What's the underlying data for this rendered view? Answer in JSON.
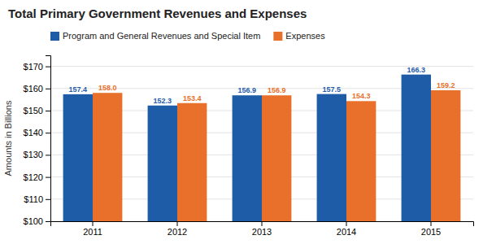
{
  "chart_data": {
    "type": "bar",
    "title": "Total Primary Government Revenues and Expenses",
    "y_label": "Amounts in Billions",
    "categories": [
      "2011",
      "2012",
      "2013",
      "2014",
      "2015"
    ],
    "series": [
      {
        "name": "Program and General Revenues and Special Item",
        "color": "#1F5CA8",
        "values": [
          157.4,
          152.3,
          156.9,
          157.5,
          166.3
        ],
        "value_labels": [
          "157.4",
          "152.3",
          "156.9",
          "157.5",
          "166.3"
        ]
      },
      {
        "name": "Expenses",
        "color": "#E8702A",
        "values": [
          158.0,
          153.4,
          156.9,
          154.3,
          159.2
        ],
        "value_labels": [
          "158.0",
          "153.4",
          "156.9",
          "154.3",
          "159.2"
        ]
      }
    ],
    "ylim": [
      100,
      175
    ],
    "yticks": [
      {
        "value": 100,
        "label": "$100"
      },
      {
        "value": 110,
        "label": "$110"
      },
      {
        "value": 120,
        "label": "$120"
      },
      {
        "value": 130,
        "label": "$130"
      },
      {
        "value": 140,
        "label": "$140"
      },
      {
        "value": 150,
        "label": "$150"
      },
      {
        "value": 160,
        "label": "$160"
      },
      {
        "value": 170,
        "label": "$170"
      }
    ],
    "grid": true,
    "legend": "top-left",
    "data_labels": true
  }
}
